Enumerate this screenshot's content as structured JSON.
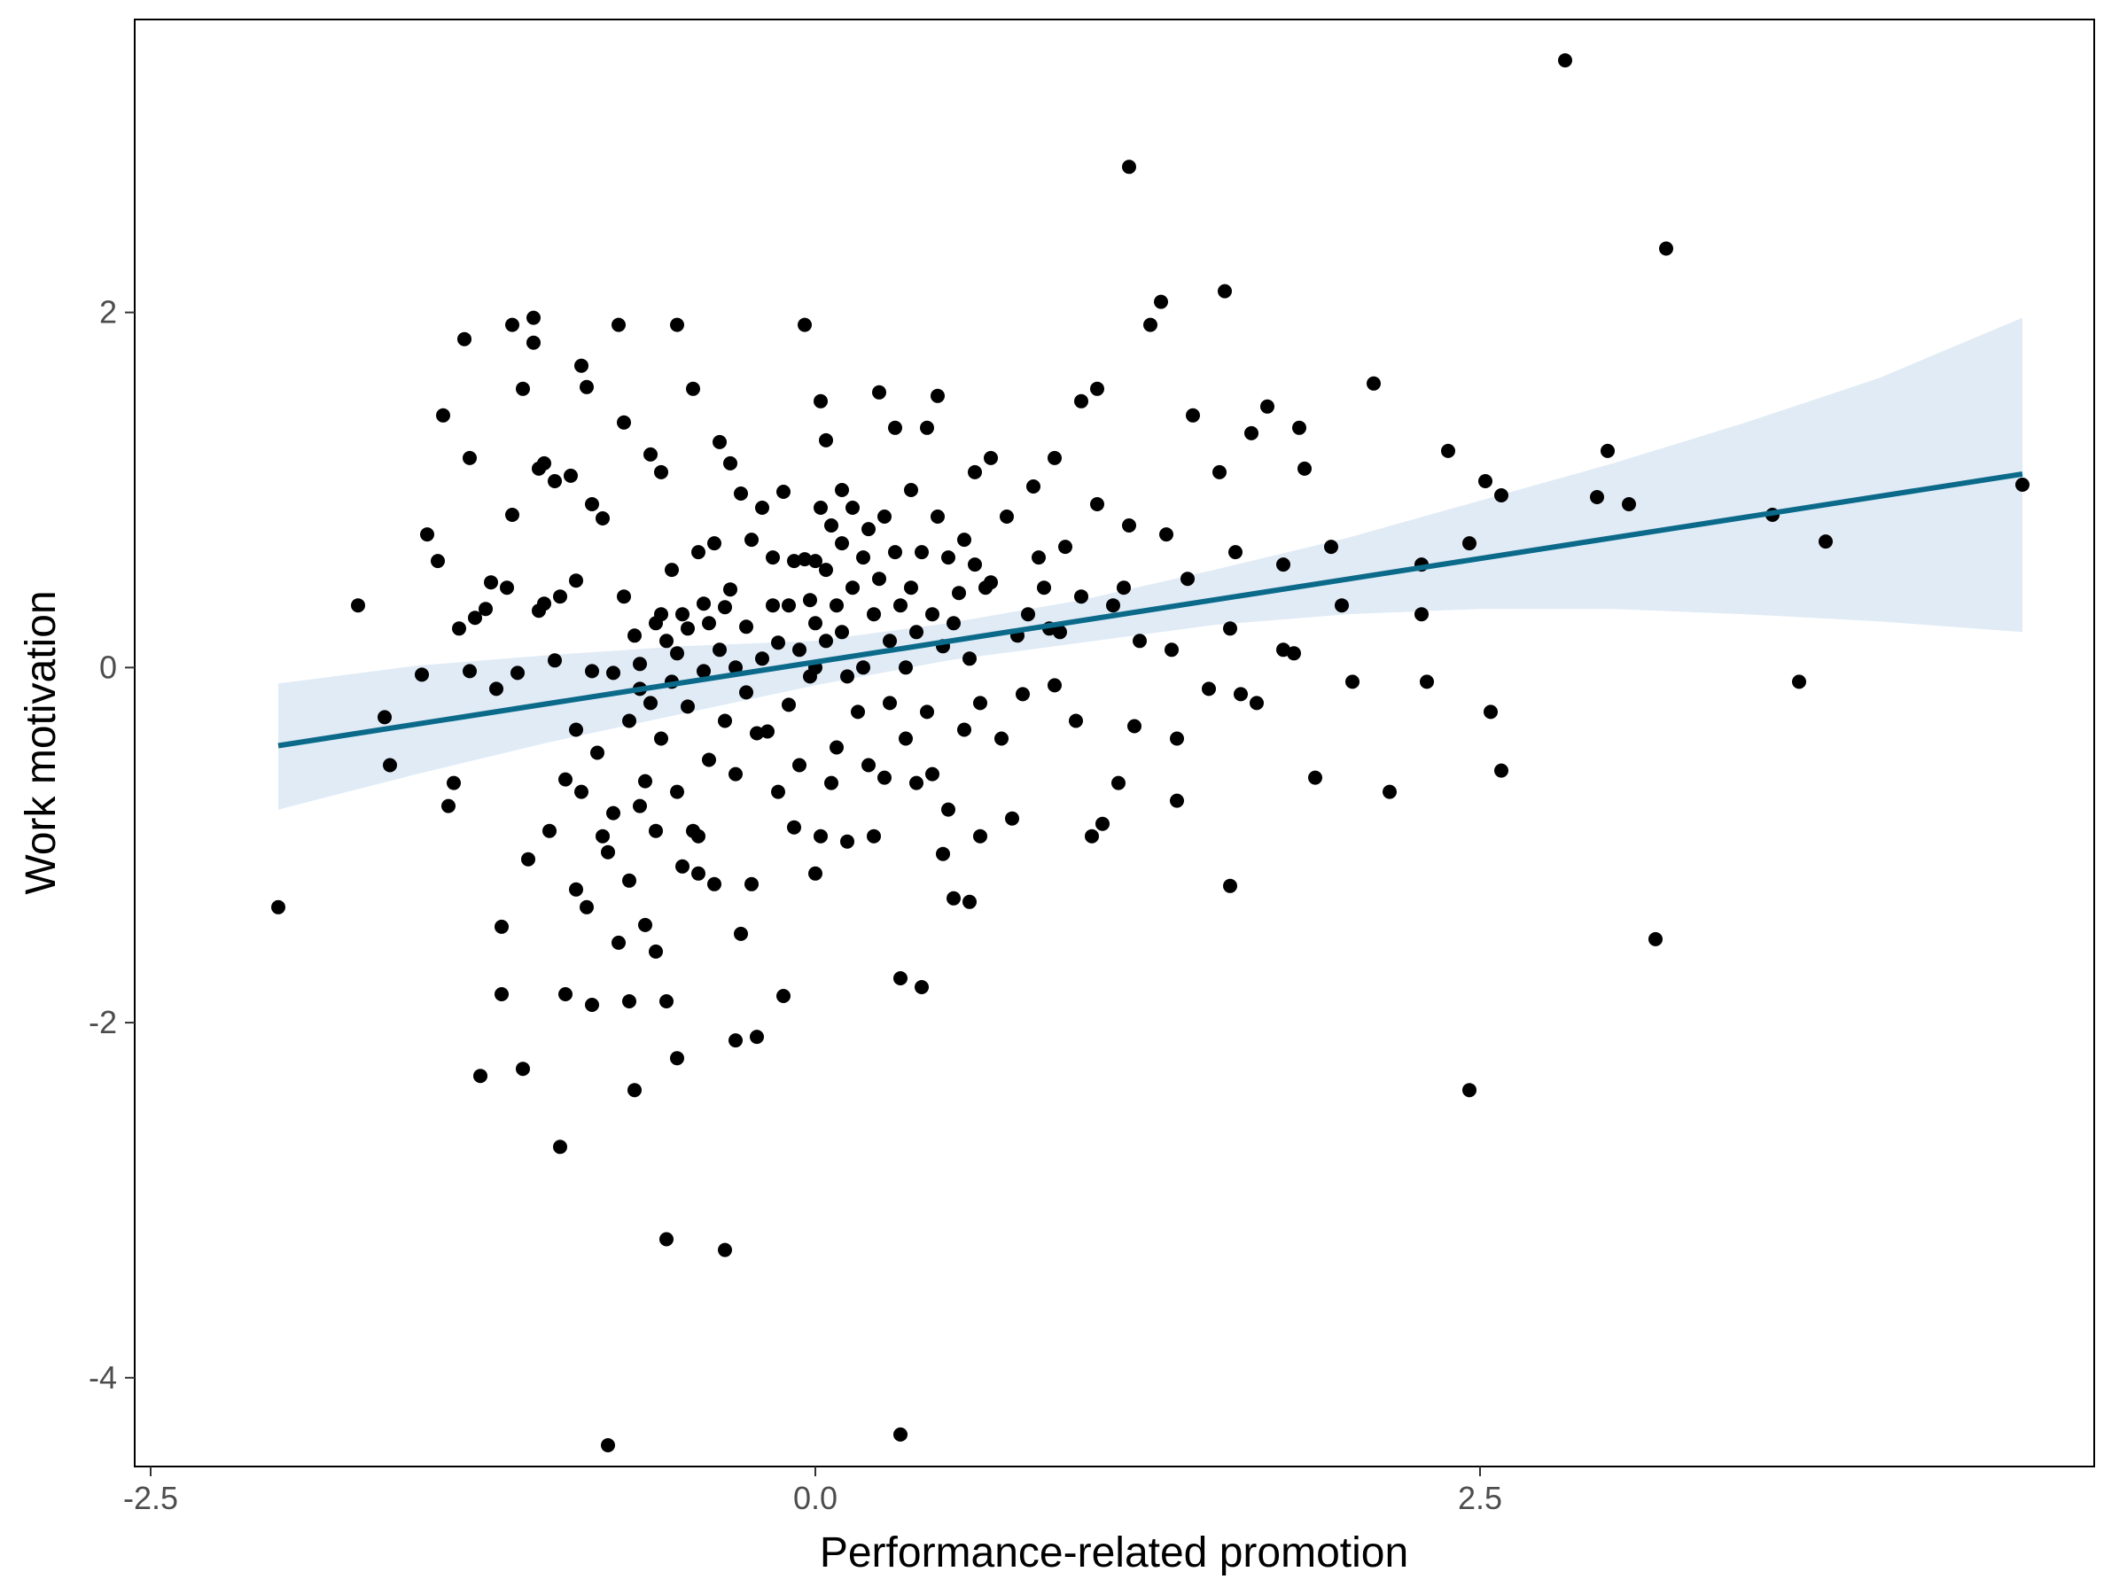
{
  "chart_data": {
    "type": "scatter",
    "title": "",
    "xlabel": "Performance-related promotion",
    "ylabel": "Work motivation",
    "xlim": [
      -2.56,
      4.81
    ],
    "ylim": [
      -4.5,
      3.65
    ],
    "xticks": [
      -2.5,
      0.0,
      2.5
    ],
    "xtick_labels": [
      "-2.5",
      "0.0",
      "2.5"
    ],
    "yticks": [
      -4,
      -2,
      0,
      2
    ],
    "ytick_labels": [
      "-4",
      "-2",
      "0",
      "2"
    ],
    "grid": false,
    "colors": {
      "points": "#000000",
      "fit_line": "#0b6a8a",
      "confidence_band": "#dbe7f5",
      "panel_border": "#000000"
    },
    "fit_line": {
      "x": [
        -2.02,
        4.54
      ],
      "y": [
        -0.44,
        1.09
      ]
    },
    "confidence_band": {
      "x": [
        -2.02,
        -1.5,
        -1.0,
        -0.5,
        0.0,
        0.5,
        1.0,
        1.5,
        2.0,
        2.5,
        3.0,
        3.5,
        4.0,
        4.54
      ],
      "lower": [
        -0.8,
        -0.6,
        -0.42,
        -0.26,
        -0.1,
        0.04,
        0.14,
        0.24,
        0.3,
        0.33,
        0.33,
        0.3,
        0.26,
        0.2
      ],
      "upper": [
        -0.09,
        0.01,
        0.07,
        0.12,
        0.15,
        0.25,
        0.38,
        0.55,
        0.73,
        0.94,
        1.15,
        1.38,
        1.63,
        1.97
      ]
    },
    "points": [
      [
        -2.02,
        -1.35
      ],
      [
        -1.72,
        0.35
      ],
      [
        -1.62,
        -0.28
      ],
      [
        -1.6,
        -0.55
      ],
      [
        -1.48,
        -0.04
      ],
      [
        -1.46,
        0.75
      ],
      [
        -1.42,
        0.6
      ],
      [
        -1.4,
        1.42
      ],
      [
        -1.38,
        -0.78
      ],
      [
        -1.36,
        -0.65
      ],
      [
        -1.34,
        0.22
      ],
      [
        -1.32,
        1.85
      ],
      [
        -1.3,
        1.18
      ],
      [
        -1.3,
        -0.02
      ],
      [
        -1.28,
        0.28
      ],
      [
        -1.26,
        -2.3
      ],
      [
        -1.24,
        0.33
      ],
      [
        -1.22,
        0.48
      ],
      [
        -1.2,
        -0.12
      ],
      [
        -1.18,
        -1.46
      ],
      [
        -1.18,
        -1.84
      ],
      [
        -1.16,
        0.45
      ],
      [
        -1.14,
        1.93
      ],
      [
        -1.14,
        0.86
      ],
      [
        -1.12,
        -0.03
      ],
      [
        -1.1,
        1.57
      ],
      [
        -1.1,
        -2.26
      ],
      [
        -1.08,
        -1.08
      ],
      [
        -1.06,
        1.97
      ],
      [
        -1.06,
        1.83
      ],
      [
        -1.04,
        1.12
      ],
      [
        -1.04,
        0.32
      ],
      [
        -1.02,
        1.15
      ],
      [
        -1.02,
        0.36
      ],
      [
        -1.0,
        -0.92
      ],
      [
        -0.98,
        1.05
      ],
      [
        -0.98,
        0.04
      ],
      [
        -0.96,
        -2.7
      ],
      [
        -0.96,
        0.4
      ],
      [
        -0.94,
        -0.63
      ],
      [
        -0.94,
        -1.84
      ],
      [
        -0.92,
        1.08
      ],
      [
        -0.9,
        0.49
      ],
      [
        -0.9,
        -0.35
      ],
      [
        -0.88,
        1.7
      ],
      [
        -0.88,
        -0.7
      ],
      [
        -0.86,
        1.58
      ],
      [
        -0.86,
        -1.35
      ],
      [
        -0.84,
        0.92
      ],
      [
        -0.84,
        -0.02
      ],
      [
        -0.82,
        -0.48
      ],
      [
        -0.8,
        0.84
      ],
      [
        -0.8,
        -0.95
      ],
      [
        -0.78,
        -1.04
      ],
      [
        -0.76,
        -0.03
      ],
      [
        -0.76,
        -0.82
      ],
      [
        -0.74,
        1.93
      ],
      [
        -0.74,
        -1.55
      ],
      [
        -0.72,
        0.4
      ],
      [
        -0.72,
        1.38
      ],
      [
        -0.7,
        -0.3
      ],
      [
        -0.7,
        -1.2
      ],
      [
        -0.7,
        -1.88
      ],
      [
        -0.68,
        -2.38
      ],
      [
        -0.68,
        0.18
      ],
      [
        -0.66,
        -0.12
      ],
      [
        -0.66,
        0.02
      ],
      [
        -0.64,
        -1.45
      ],
      [
        -0.64,
        -0.64
      ],
      [
        -0.62,
        1.2
      ],
      [
        -0.62,
        -0.2
      ],
      [
        -0.6,
        -1.6
      ],
      [
        -0.6,
        0.25
      ],
      [
        -0.58,
        1.1
      ],
      [
        -0.58,
        0.3
      ],
      [
        -0.58,
        -0.4
      ],
      [
        -0.56,
        -1.88
      ],
      [
        -0.56,
        0.15
      ],
      [
        -0.54,
        0.55
      ],
      [
        -0.54,
        -0.08
      ],
      [
        -0.52,
        1.93
      ],
      [
        -0.52,
        0.08
      ],
      [
        -0.52,
        -0.7
      ],
      [
        -0.5,
        0.3
      ],
      [
        -0.5,
        -1.12
      ],
      [
        -0.48,
        -0.22
      ],
      [
        -0.48,
        0.22
      ],
      [
        -0.46,
        -0.92
      ],
      [
        -0.46,
        1.57
      ],
      [
        -0.44,
        0.65
      ],
      [
        -0.44,
        -1.16
      ],
      [
        -0.42,
        0.36
      ],
      [
        -0.42,
        -0.02
      ],
      [
        -0.4,
        0.25
      ],
      [
        -0.4,
        -0.52
      ],
      [
        -0.38,
        0.7
      ],
      [
        -0.38,
        -1.22
      ],
      [
        -0.36,
        0.1
      ],
      [
        -0.36,
        1.27
      ],
      [
        -0.34,
        0.34
      ],
      [
        -0.34,
        -0.3
      ],
      [
        -0.32,
        1.15
      ],
      [
        -0.32,
        0.44
      ],
      [
        -0.3,
        0.0
      ],
      [
        -0.3,
        -0.6
      ],
      [
        -0.28,
        0.98
      ],
      [
        -0.28,
        -1.5
      ],
      [
        -0.26,
        0.23
      ],
      [
        -0.26,
        -0.14
      ],
      [
        -0.24,
        0.72
      ],
      [
        -0.24,
        -1.22
      ],
      [
        -0.22,
        -2.08
      ],
      [
        -0.22,
        -0.37
      ],
      [
        -0.2,
        0.9
      ],
      [
        -0.2,
        0.05
      ],
      [
        -0.18,
        -0.36
      ],
      [
        -0.16,
        0.35
      ],
      [
        -0.16,
        0.62
      ],
      [
        -0.14,
        0.14
      ],
      [
        -0.14,
        -0.7
      ],
      [
        -0.12,
        -1.85
      ],
      [
        -0.12,
        0.99
      ],
      [
        -0.1,
        -0.21
      ],
      [
        -0.1,
        0.35
      ],
      [
        -0.08,
        -0.9
      ],
      [
        -0.08,
        0.6
      ],
      [
        -0.06,
        0.1
      ],
      [
        -0.06,
        -0.55
      ],
      [
        -0.04,
        1.93
      ],
      [
        -0.04,
        0.61
      ],
      [
        -0.02,
        0.38
      ],
      [
        -0.02,
        -0.05
      ],
      [
        0.0,
        0.6
      ],
      [
        0.0,
        -1.16
      ],
      [
        0.0,
        0.25
      ],
      [
        0.0,
        0.0
      ],
      [
        0.02,
        1.5
      ],
      [
        0.02,
        0.9
      ],
      [
        0.02,
        -0.95
      ],
      [
        0.04,
        1.28
      ],
      [
        0.04,
        0.55
      ],
      [
        0.04,
        0.15
      ],
      [
        0.06,
        -0.65
      ],
      [
        0.06,
        0.8
      ],
      [
        0.08,
        0.35
      ],
      [
        0.08,
        -0.45
      ],
      [
        0.1,
        1.0
      ],
      [
        0.1,
        0.7
      ],
      [
        0.1,
        0.2
      ],
      [
        0.12,
        -0.98
      ],
      [
        0.12,
        -0.05
      ],
      [
        0.14,
        0.45
      ],
      [
        0.14,
        0.9
      ],
      [
        0.16,
        -0.25
      ],
      [
        0.18,
        0.62
      ],
      [
        0.18,
        0.0
      ],
      [
        0.2,
        -0.55
      ],
      [
        0.2,
        0.78
      ],
      [
        0.22,
        0.3
      ],
      [
        0.22,
        -0.95
      ],
      [
        0.24,
        1.55
      ],
      [
        0.24,
        0.5
      ],
      [
        0.26,
        -0.62
      ],
      [
        0.26,
        0.85
      ],
      [
        0.28,
        0.15
      ],
      [
        0.28,
        -0.2
      ],
      [
        0.3,
        1.35
      ],
      [
        0.3,
        0.65
      ],
      [
        0.32,
        -1.75
      ],
      [
        0.32,
        0.35
      ],
      [
        0.34,
        0.0
      ],
      [
        0.34,
        -0.4
      ],
      [
        0.36,
        1.0
      ],
      [
        0.36,
        0.45
      ],
      [
        0.38,
        -0.65
      ],
      [
        0.38,
        0.2
      ],
      [
        0.4,
        0.65
      ],
      [
        0.4,
        -1.8
      ],
      [
        0.42,
        1.35
      ],
      [
        0.42,
        -0.25
      ],
      [
        0.44,
        0.3
      ],
      [
        0.44,
        -0.6
      ],
      [
        0.46,
        0.85
      ],
      [
        0.46,
        1.53
      ],
      [
        0.48,
        -1.05
      ],
      [
        0.48,
        0.12
      ],
      [
        0.5,
        0.62
      ],
      [
        0.5,
        -0.8
      ],
      [
        0.52,
        0.25
      ],
      [
        0.52,
        -1.3
      ],
      [
        0.54,
        0.42
      ],
      [
        0.56,
        -0.35
      ],
      [
        0.56,
        0.72
      ],
      [
        0.58,
        -1.32
      ],
      [
        0.58,
        0.05
      ],
      [
        0.6,
        0.58
      ],
      [
        0.6,
        1.1
      ],
      [
        0.62,
        -0.95
      ],
      [
        0.62,
        -0.2
      ],
      [
        0.64,
        0.45
      ],
      [
        0.66,
        1.18
      ],
      [
        0.66,
        0.48
      ],
      [
        0.7,
        -0.4
      ],
      [
        0.72,
        0.85
      ],
      [
        0.74,
        -0.85
      ],
      [
        0.76,
        0.18
      ],
      [
        0.78,
        -0.15
      ],
      [
        0.8,
        0.3
      ],
      [
        0.82,
        1.02
      ],
      [
        0.84,
        0.62
      ],
      [
        0.86,
        0.45
      ],
      [
        0.88,
        0.22
      ],
      [
        0.9,
        1.18
      ],
      [
        0.9,
        -0.1
      ],
      [
        0.92,
        0.2
      ],
      [
        0.94,
        0.68
      ],
      [
        0.98,
        -0.3
      ],
      [
        1.0,
        1.5
      ],
      [
        1.0,
        0.4
      ],
      [
        1.04,
        -0.95
      ],
      [
        1.06,
        1.57
      ],
      [
        1.06,
        0.92
      ],
      [
        1.08,
        -0.88
      ],
      [
        1.12,
        0.35
      ],
      [
        1.14,
        -0.65
      ],
      [
        1.16,
        0.45
      ],
      [
        1.18,
        0.8
      ],
      [
        1.18,
        2.82
      ],
      [
        1.2,
        -0.33
      ],
      [
        1.22,
        0.15
      ],
      [
        1.26,
        1.93
      ],
      [
        1.3,
        2.06
      ],
      [
        1.32,
        0.75
      ],
      [
        1.34,
        0.1
      ],
      [
        1.36,
        -0.4
      ],
      [
        1.36,
        -0.75
      ],
      [
        1.4,
        0.5
      ],
      [
        1.42,
        1.42
      ],
      [
        1.48,
        -0.12
      ],
      [
        1.52,
        1.1
      ],
      [
        1.54,
        2.12
      ],
      [
        1.56,
        0.22
      ],
      [
        1.56,
        -1.23
      ],
      [
        1.58,
        0.65
      ],
      [
        1.6,
        -0.15
      ],
      [
        1.64,
        1.32
      ],
      [
        1.66,
        -0.2
      ],
      [
        1.7,
        1.47
      ],
      [
        1.76,
        0.58
      ],
      [
        1.76,
        0.1
      ],
      [
        1.8,
        0.08
      ],
      [
        1.82,
        1.35
      ],
      [
        1.84,
        1.12
      ],
      [
        1.88,
        -0.62
      ],
      [
        1.94,
        0.68
      ],
      [
        1.98,
        0.35
      ],
      [
        2.02,
        -0.08
      ],
      [
        2.1,
        1.6
      ],
      [
        2.16,
        -0.7
      ],
      [
        2.28,
        0.58
      ],
      [
        2.28,
        0.3
      ],
      [
        2.3,
        -0.08
      ],
      [
        2.38,
        1.22
      ],
      [
        2.46,
        0.7
      ],
      [
        2.46,
        -2.38
      ],
      [
        2.52,
        1.05
      ],
      [
        2.54,
        -0.25
      ],
      [
        2.58,
        0.97
      ],
      [
        2.58,
        -0.58
      ],
      [
        2.82,
        3.42
      ],
      [
        2.94,
        0.96
      ],
      [
        2.98,
        1.22
      ],
      [
        3.06,
        0.92
      ],
      [
        3.16,
        -1.53
      ],
      [
        3.2,
        2.36
      ],
      [
        3.6,
        0.86
      ],
      [
        3.7,
        -0.08
      ],
      [
        3.8,
        0.71
      ],
      [
        4.54,
        1.03
      ],
      [
        -0.56,
        -3.22
      ],
      [
        -0.34,
        -3.28
      ],
      [
        -0.78,
        -4.38
      ],
      [
        0.32,
        -4.32
      ],
      [
        -0.52,
        -2.2
      ],
      [
        -0.3,
        -2.1
      ],
      [
        -0.6,
        -0.92
      ],
      [
        -0.66,
        -0.78
      ],
      [
        -0.44,
        -0.95
      ],
      [
        -0.9,
        -1.25
      ],
      [
        -0.84,
        -1.9
      ]
    ]
  }
}
